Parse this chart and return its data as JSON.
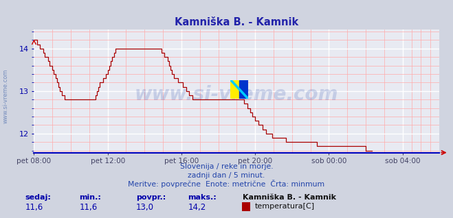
{
  "title": "Kamniška B. - Kamnik",
  "title_color": "#2222aa",
  "bg_color": "#d0d4e0",
  "plot_bg_color": "#e8eaf2",
  "grid_color_major": "#ffffff",
  "grid_color_minor": "#ffaaaa",
  "line_color": "#aa0000",
  "axis_color": "#0000aa",
  "watermark_text": "www.si-vreme.com",
  "watermark_color": "#2244aa",
  "watermark_alpha": 0.18,
  "subtitle1": "Slovenija / reke in morje.",
  "subtitle2": "zadnji dan / 5 minut.",
  "subtitle3": "Meritve: povprečne  Enote: metrične  Črta: minmum",
  "subtitle_color": "#2244aa",
  "footer_left_labels": [
    "sedaj:",
    "min.:",
    "povpr.:",
    "maks.:"
  ],
  "footer_left_values": [
    "11,6",
    "11,6",
    "13,0",
    "14,2"
  ],
  "footer_station": "Kamniška B. - Kamnik",
  "footer_legend_label": "temperatura[C]",
  "footer_legend_color": "#aa0000",
  "ylim": [
    11.55,
    14.45
  ],
  "yticks": [
    12,
    13,
    14
  ],
  "xtick_labels": [
    "pet 08:00",
    "pet 12:00",
    "pet 16:00",
    "pet 20:00",
    "sob 00:00",
    "sob 04:00"
  ],
  "xtick_positions": [
    0,
    48,
    96,
    144,
    192,
    240
  ],
  "total_points": 265,
  "temperatures": [
    14.2,
    14.2,
    14.1,
    14.1,
    14.0,
    14.0,
    13.9,
    13.8,
    13.8,
    13.7,
    13.6,
    13.6,
    13.5,
    13.4,
    13.3,
    13.2,
    13.1,
    13.0,
    12.9,
    12.9,
    12.8,
    12.8,
    12.8,
    12.8,
    12.8,
    12.8,
    12.8,
    12.8,
    12.8,
    12.8,
    12.8,
    12.8,
    12.8,
    12.8,
    12.8,
    12.8,
    12.8,
    12.8,
    12.8,
    12.8,
    12.9,
    13.0,
    13.1,
    13.2,
    13.2,
    13.3,
    13.3,
    13.4,
    13.5,
    13.6,
    13.7,
    13.8,
    13.9,
    14.0,
    14.0,
    14.0,
    14.0,
    14.0,
    14.0,
    14.0,
    14.0,
    14.0,
    14.0,
    14.0,
    14.0,
    14.0,
    14.0,
    14.0,
    14.0,
    14.0,
    14.0,
    14.0,
    14.0,
    14.0,
    14.0,
    14.0,
    14.0,
    14.0,
    14.0,
    14.0,
    14.0,
    14.0,
    14.0,
    13.9,
    13.9,
    13.8,
    13.8,
    13.7,
    13.6,
    13.5,
    13.4,
    13.3,
    13.3,
    13.3,
    13.2,
    13.2,
    13.2,
    13.1,
    13.1,
    13.0,
    13.0,
    12.9,
    12.9,
    12.8,
    12.8,
    12.8,
    12.8,
    12.8,
    12.8,
    12.8,
    12.8,
    12.8,
    12.8,
    12.8,
    12.8,
    12.8,
    12.8,
    12.8,
    12.8,
    12.8,
    12.8,
    12.8,
    12.8,
    12.8,
    12.8,
    12.8,
    12.8,
    12.8,
    12.8,
    12.8,
    12.8,
    12.8,
    12.8,
    12.8,
    12.8,
    12.8,
    12.8,
    12.7,
    12.7,
    12.6,
    12.6,
    12.5,
    12.4,
    12.4,
    12.3,
    12.3,
    12.2,
    12.2,
    12.2,
    12.1,
    12.1,
    12.0,
    12.0,
    12.0,
    12.0,
    11.9,
    11.9,
    11.9,
    11.9,
    11.9,
    11.9,
    11.9,
    11.9,
    11.9,
    11.8,
    11.8,
    11.8,
    11.8,
    11.8,
    11.8,
    11.8,
    11.8,
    11.8,
    11.8,
    11.8,
    11.8,
    11.8,
    11.8,
    11.8,
    11.8,
    11.8,
    11.8,
    11.8,
    11.8,
    11.7,
    11.7,
    11.7,
    11.7,
    11.7,
    11.7,
    11.7,
    11.7,
    11.7,
    11.7,
    11.7,
    11.7,
    11.7,
    11.7,
    11.7,
    11.7,
    11.7,
    11.7,
    11.7,
    11.7,
    11.7,
    11.7,
    11.7,
    11.7,
    11.7,
    11.7,
    11.7,
    11.7,
    11.7,
    11.7,
    11.7,
    11.7,
    11.6,
    11.6,
    11.6,
    11.6,
    11.6
  ]
}
